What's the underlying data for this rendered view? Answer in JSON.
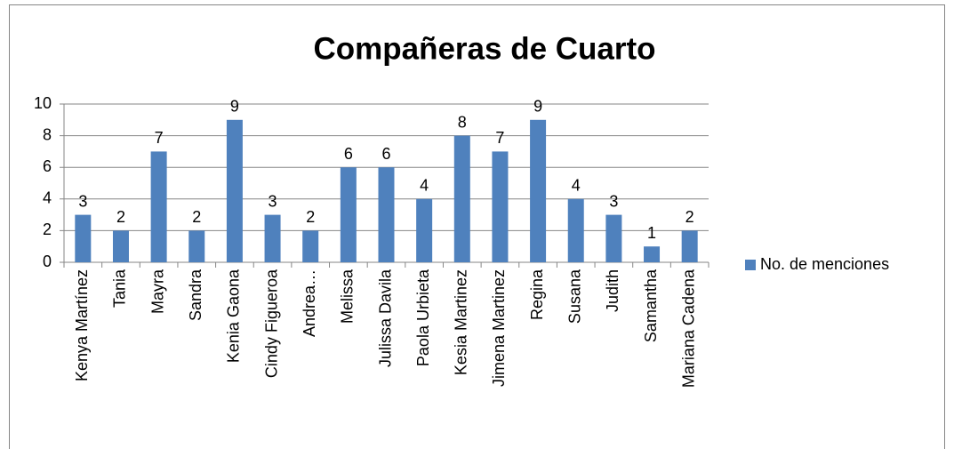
{
  "chart_data": {
    "type": "bar",
    "title": "Compañeras de Cuarto",
    "categories": [
      "Kenya Martínez",
      "Tania",
      "Mayra",
      "Sandra",
      "Kenia Gaona",
      "Cindy Figueroa",
      "Andrea…",
      "Melissa",
      "Julissa Davila",
      "Paola Urbieta",
      "Kesia Martinez",
      "Jimena Martinez",
      "Regina",
      "Susana",
      "Judith",
      "Samantha",
      "Mariana Cadena"
    ],
    "series": [
      {
        "name": "No. de menciones",
        "color": "#4f81bd",
        "values": [
          3,
          2,
          7,
          2,
          9,
          3,
          2,
          6,
          6,
          4,
          8,
          7,
          9,
          4,
          3,
          1,
          2
        ]
      }
    ],
    "ylim": [
      0,
      10
    ],
    "yticks": [
      0,
      2,
      4,
      6,
      8,
      10
    ],
    "grid": true,
    "legend": "right"
  }
}
